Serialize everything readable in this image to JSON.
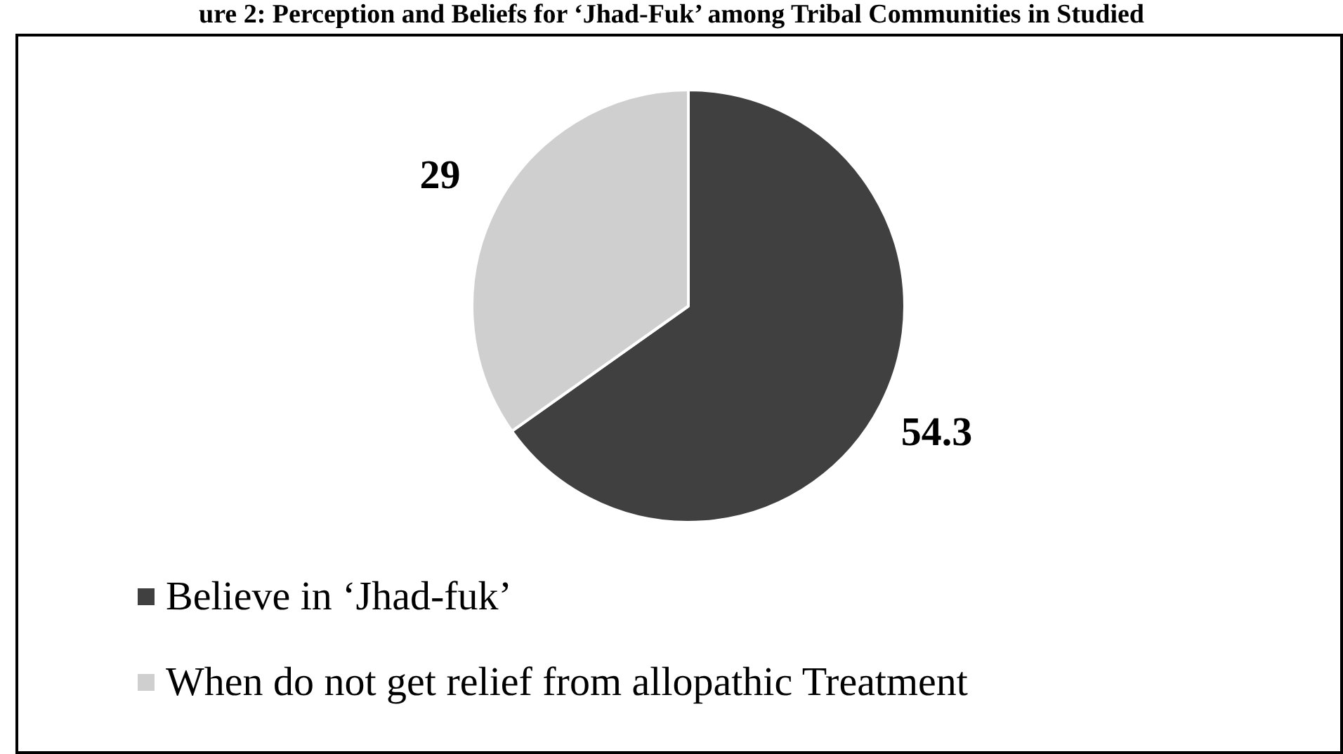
{
  "chart_data": {
    "type": "pie",
    "title": "ure 2: Perception and Beliefs for ‘Jhad-Fuk’ among Tribal Communities in Studied",
    "categories": [
      "Believe in ‘Jhad-fuk’",
      "When do not get relief from allopathic Treatment"
    ],
    "values": [
      54.3,
      29
    ],
    "colors": [
      "#404040",
      "#d0cfd0"
    ],
    "data_labels": true,
    "legend": "bottom"
  }
}
